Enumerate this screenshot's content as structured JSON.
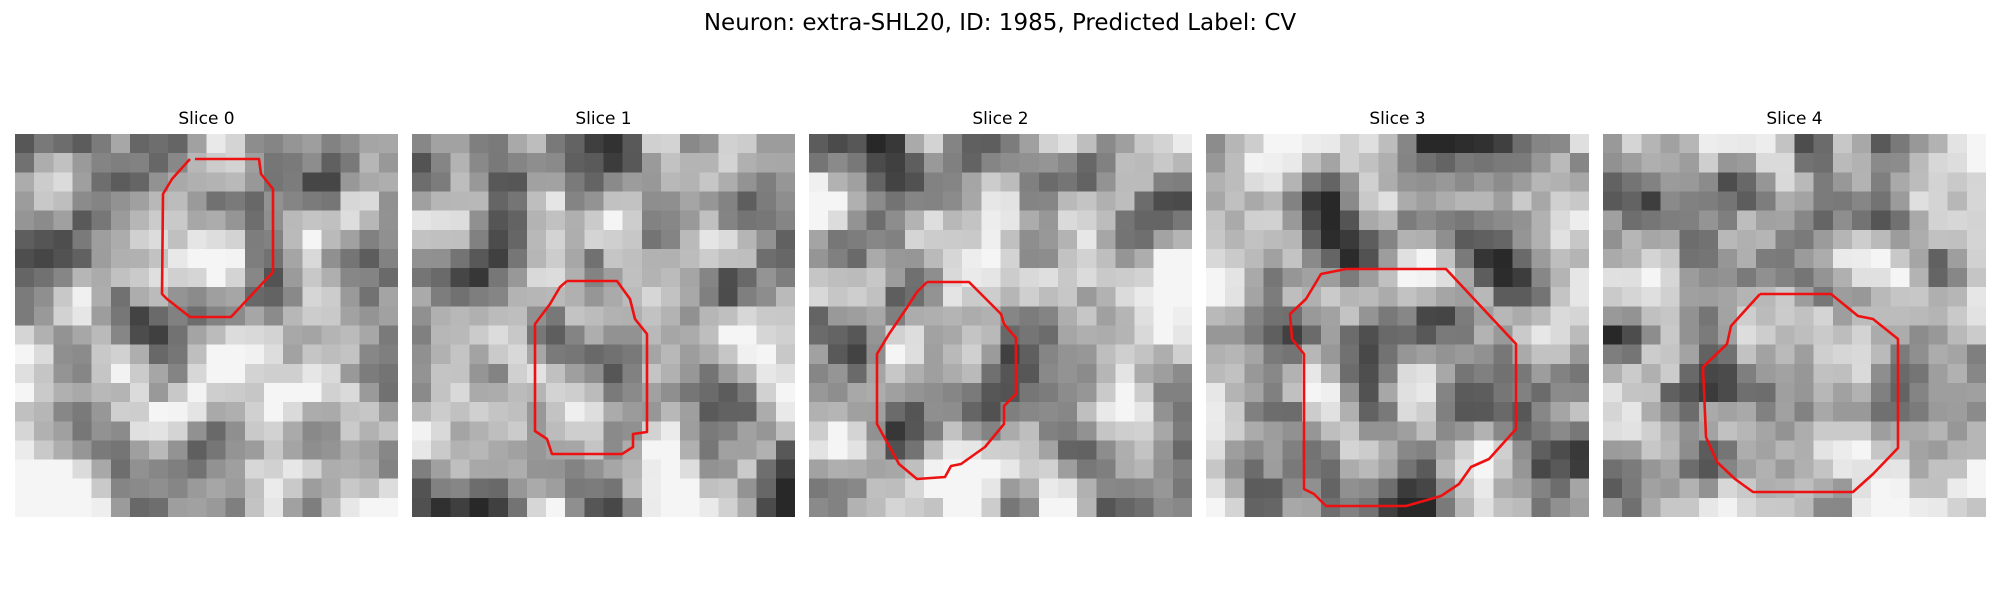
{
  "figure": {
    "title": "Neuron: extra-SHL20, ID: 1985, Predicted Label: CV"
  },
  "panels": [
    {
      "title": "Slice 0",
      "grid_size": 20,
      "seed": 11,
      "outline_color": "#ee1111"
    },
    {
      "title": "Slice 1",
      "grid_size": 20,
      "seed": 27,
      "outline_color": "#ee1111"
    },
    {
      "title": "Slice 2",
      "grid_size": 20,
      "seed": 43,
      "outline_color": "#ee1111"
    },
    {
      "title": "Slice 3",
      "grid_size": 20,
      "seed": 59,
      "outline_color": "#ee1111"
    },
    {
      "title": "Slice 4",
      "grid_size": 20,
      "seed": 71,
      "outline_color": "#ee1111"
    }
  ]
}
